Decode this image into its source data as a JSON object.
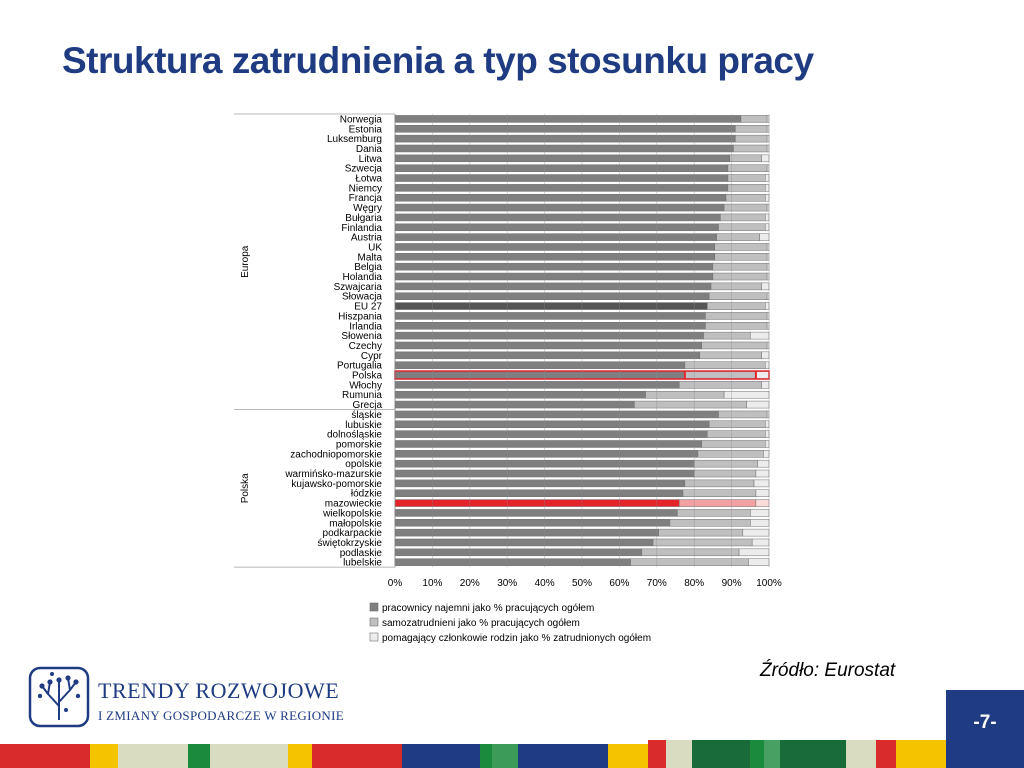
{
  "slide": {
    "title": "Struktura zatrudnienia a typ stosunku pracy",
    "source": "Źródło: Eurostat",
    "page_number": "-7-",
    "logo_line1": "TRENDY ROZWOJOWE",
    "logo_line2": "I ZMIANY GOSPODARCZE W REGIONIE"
  },
  "colors": {
    "title": "#1f3c82",
    "series_dark": "#7f7f7f",
    "series_mid": "#bfbfbf",
    "series_light": "#ececec",
    "highlight_red": "#e3242b",
    "footer_blue": "#1f3c82",
    "footer_red": "#d92b2b",
    "footer_green": "#1a8a3c",
    "footer_yellow": "#f5c400",
    "footer_beige": "#d9dcc0"
  },
  "chart_data": {
    "type": "bar",
    "orientation": "horizontal",
    "stacked": "100%",
    "xlim": [
      0,
      100
    ],
    "x_ticks": [
      "0%",
      "10%",
      "20%",
      "30%",
      "40%",
      "50%",
      "60%",
      "70%",
      "80%",
      "90%",
      "100%"
    ],
    "series": [
      {
        "name": "pracownicy najemni jako % pracujących ogółem"
      },
      {
        "name": "samozatrudnieni jako % pracujących ogółem"
      },
      {
        "name": "pomagający członkowie rodzin jako % zatrudnionych ogółem"
      }
    ],
    "groups": [
      {
        "label": "Europa",
        "items": [
          {
            "label": "Norwegia",
            "values": [
              92.5,
              7,
              0.5
            ]
          },
          {
            "label": "Estonia",
            "values": [
              91,
              8.5,
              0.5
            ]
          },
          {
            "label": "Luksemburg",
            "values": [
              91,
              8.5,
              0.5
            ]
          },
          {
            "label": "Dania",
            "values": [
              90.5,
              9,
              0.5
            ]
          },
          {
            "label": "Litwa",
            "values": [
              89.5,
              8.5,
              2
            ]
          },
          {
            "label": "Szwecja",
            "values": [
              89,
              10.5,
              0.5
            ]
          },
          {
            "label": "Łotwa",
            "values": [
              89,
              10,
              1
            ]
          },
          {
            "label": "Niemcy",
            "values": [
              89,
              10,
              1
            ]
          },
          {
            "label": "Francja",
            "values": [
              88.5,
              10.5,
              1
            ]
          },
          {
            "label": "Węgry",
            "values": [
              88,
              11.5,
              0.5
            ]
          },
          {
            "label": "Bułgaria",
            "values": [
              87,
              12,
              1
            ]
          },
          {
            "label": "Finlandia",
            "values": [
              86.5,
              12.5,
              1
            ]
          },
          {
            "label": "Austria",
            "values": [
              86,
              11.5,
              2.5
            ]
          },
          {
            "label": "UK",
            "values": [
              85.5,
              14,
              0.5
            ]
          },
          {
            "label": "Malta",
            "values": [
              85.5,
              14,
              0.5
            ]
          },
          {
            "label": "Belgia",
            "values": [
              85,
              14.5,
              0.5
            ]
          },
          {
            "label": "Holandia",
            "values": [
              85,
              14.5,
              0.5
            ]
          },
          {
            "label": "Szwajcaria",
            "values": [
              84.5,
              13.5,
              2
            ]
          },
          {
            "label": "Słowacja",
            "values": [
              84,
              15.5,
              0.5
            ]
          },
          {
            "label": "EU 27",
            "values": [
              83.5,
              15.5,
              1
            ]
          },
          {
            "label": "Hiszpania",
            "values": [
              83,
              16.5,
              0.5
            ]
          },
          {
            "label": "Irlandia",
            "values": [
              83,
              16.5,
              0.5
            ]
          },
          {
            "label": "Słowenia",
            "values": [
              82.5,
              12.5,
              5
            ]
          },
          {
            "label": "Czechy",
            "values": [
              82,
              17.5,
              0.5
            ]
          },
          {
            "label": "Cypr",
            "values": [
              81.5,
              16.5,
              2
            ]
          },
          {
            "label": "Portugalia",
            "values": [
              77.5,
              21.5,
              1
            ]
          },
          {
            "label": "Polska",
            "values": [
              77.5,
              19,
              3.5
            ]
          },
          {
            "label": "Włochy",
            "values": [
              76,
              22,
              2
            ]
          },
          {
            "label": "Rumunia",
            "values": [
              67,
              21,
              12
            ]
          },
          {
            "label": "Grecja",
            "values": [
              64,
              30,
              6
            ]
          }
        ]
      },
      {
        "label": "Polska",
        "items": [
          {
            "label": "śląskie",
            "values": [
              86.5,
              13,
              0.5
            ]
          },
          {
            "label": "lubuskie",
            "values": [
              84,
              15,
              1
            ]
          },
          {
            "label": "dolnośląskie",
            "values": [
              83.5,
              15.5,
              1
            ]
          },
          {
            "label": "pomorskie",
            "values": [
              82,
              17,
              1
            ]
          },
          {
            "label": "zachodniopomorskie",
            "values": [
              81,
              17.5,
              1.5
            ]
          },
          {
            "label": "opolskie",
            "values": [
              80,
              17,
              3
            ]
          },
          {
            "label": "warmińsko-mazurskie",
            "values": [
              80,
              16.5,
              3.5
            ]
          },
          {
            "label": "kujawsko-pomorskie",
            "values": [
              77.5,
              18.5,
              4
            ]
          },
          {
            "label": "łódzkie",
            "values": [
              77,
              19.5,
              3.5
            ]
          },
          {
            "label": "mazowieckie",
            "values": [
              76,
              20.5,
              3.5
            ]
          },
          {
            "label": "wielkopolskie",
            "values": [
              75.5,
              19.5,
              5
            ]
          },
          {
            "label": "małopolskie",
            "values": [
              73.5,
              21.5,
              5
            ]
          },
          {
            "label": "podkarpackie",
            "values": [
              70.5,
              22.5,
              7
            ]
          },
          {
            "label": "świętokrzyskie",
            "values": [
              69,
              26.5,
              4.5
            ]
          },
          {
            "label": "podlaskie",
            "values": [
              66,
              26,
              8
            ]
          },
          {
            "label": "lubelskie",
            "values": [
              63,
              31.5,
              5.5
            ]
          }
        ]
      }
    ],
    "highlighted": {
      "EU 27": "dark",
      "Polska": "red-outline",
      "mazowieckie": "red-fill"
    }
  }
}
